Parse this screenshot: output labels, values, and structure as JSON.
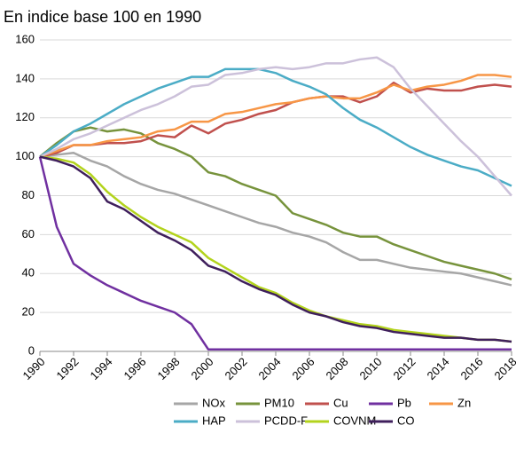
{
  "chart_data": {
    "type": "line",
    "title": "En indice base 100 en 1990",
    "x": [
      1990,
      1991,
      1992,
      1993,
      1994,
      1995,
      1996,
      1997,
      1998,
      1999,
      2000,
      2001,
      2002,
      2003,
      2004,
      2005,
      2006,
      2007,
      2008,
      2009,
      2010,
      2011,
      2012,
      2013,
      2014,
      2015,
      2016,
      2017,
      2018
    ],
    "xlim": [
      1990,
      2018
    ],
    "xticks": [
      1990,
      1992,
      1994,
      1996,
      1998,
      2000,
      2002,
      2004,
      2006,
      2008,
      2010,
      2012,
      2014,
      2016,
      2018
    ],
    "ylim": [
      0,
      160
    ],
    "yticks": [
      0,
      20,
      40,
      60,
      80,
      100,
      120,
      140,
      160
    ],
    "grid": true,
    "legend": "bottom",
    "series": [
      {
        "name": "NOx",
        "color": "#a6a6a6",
        "values": [
          100,
          101,
          102,
          98,
          95,
          90,
          86,
          83,
          81,
          78,
          75,
          72,
          69,
          66,
          64,
          61,
          59,
          56,
          51,
          47,
          47,
          45,
          43,
          42,
          41,
          40,
          38,
          36,
          34
        ]
      },
      {
        "name": "PM10",
        "color": "#77933c",
        "values": [
          100,
          107,
          113,
          115,
          113,
          114,
          112,
          107,
          104,
          100,
          92,
          90,
          86,
          83,
          80,
          71,
          68,
          65,
          61,
          59,
          59,
          55,
          52,
          49,
          46,
          44,
          42,
          40,
          37
        ]
      },
      {
        "name": "Cu",
        "color": "#c0504d",
        "values": [
          100,
          102,
          106,
          106,
          107,
          107,
          108,
          111,
          110,
          116,
          112,
          117,
          119,
          122,
          124,
          128,
          130,
          131,
          131,
          128,
          131,
          138,
          133,
          135,
          134,
          134,
          136,
          137,
          136
        ]
      },
      {
        "name": "Pb",
        "color": "#7030a0",
        "values": [
          100,
          64,
          45,
          39,
          34,
          30,
          26,
          23,
          20,
          14,
          1,
          1,
          1,
          1,
          1,
          1,
          1,
          1,
          1,
          1,
          1,
          1,
          1,
          1,
          1,
          1,
          1,
          1,
          1
        ]
      },
      {
        "name": "Zn",
        "color": "#f79646",
        "values": [
          100,
          103,
          106,
          106,
          108,
          109,
          110,
          113,
          114,
          118,
          118,
          122,
          123,
          125,
          127,
          128,
          130,
          131,
          130,
          130,
          133,
          137,
          134,
          136,
          137,
          139,
          142,
          142,
          141
        ]
      },
      {
        "name": "HAP",
        "color": "#4bacc6",
        "values": [
          100,
          106,
          113,
          117,
          122,
          127,
          131,
          135,
          138,
          141,
          141,
          145,
          145,
          145,
          143,
          139,
          136,
          132,
          125,
          119,
          115,
          110,
          105,
          101,
          98,
          95,
          93,
          89,
          85
        ]
      },
      {
        "name": "PCDD-F",
        "color": "#ccc1da",
        "values": [
          100,
          104,
          109,
          112,
          116,
          120,
          124,
          127,
          131,
          136,
          137,
          142,
          143,
          145,
          146,
          145,
          146,
          148,
          148,
          150,
          151,
          146,
          135,
          126,
          117,
          108,
          100,
          90,
          80
        ]
      },
      {
        "name": "COVNM",
        "color": "#b3d31d",
        "values": [
          100,
          99,
          97,
          91,
          82,
          75,
          69,
          64,
          60,
          56,
          48,
          43,
          38,
          33,
          30,
          25,
          21,
          18,
          16,
          14,
          13,
          11,
          10,
          9,
          8,
          7,
          6,
          6,
          5
        ]
      },
      {
        "name": "CO",
        "color": "#3f1f5c",
        "values": [
          100,
          98,
          95,
          89,
          77,
          73,
          67,
          61,
          57,
          52,
          44,
          41,
          36,
          32,
          29,
          24,
          20,
          18,
          15,
          13,
          12,
          10,
          9,
          8,
          7,
          7,
          6,
          6,
          5
        ]
      }
    ]
  }
}
